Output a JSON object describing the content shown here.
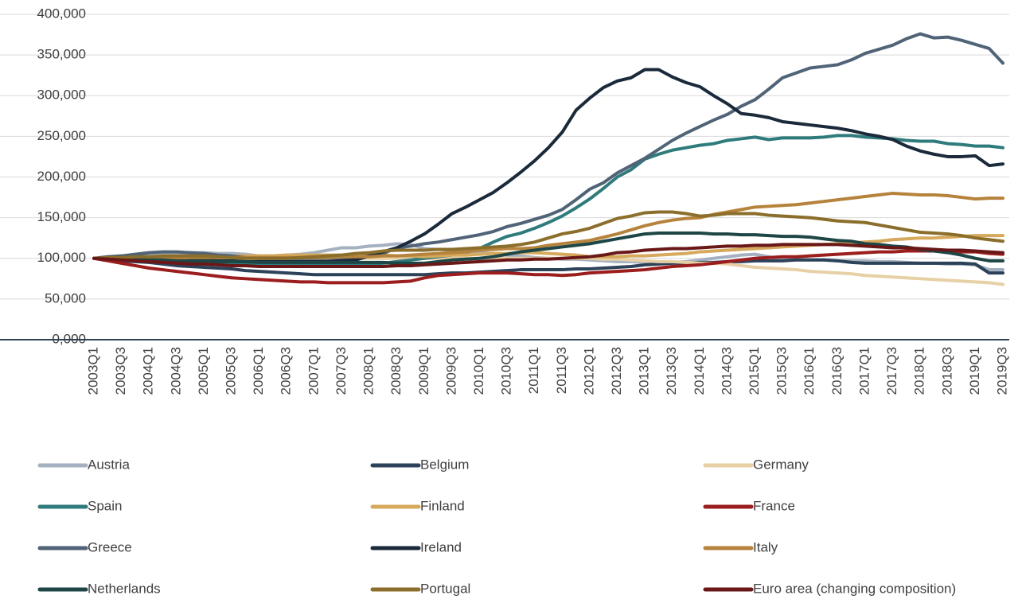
{
  "chart_data": {
    "type": "line",
    "categories": [
      "2003Q1",
      null,
      "2003Q3",
      null,
      "2004Q1",
      null,
      "2004Q3",
      null,
      "2005Q1",
      null,
      "2005Q3",
      null,
      "2006Q1",
      null,
      "2006Q3",
      null,
      "2007Q1",
      null,
      "2007Q3",
      null,
      "2008Q1",
      null,
      "2008Q3",
      null,
      "2009Q1",
      null,
      "2009Q3",
      null,
      "2010Q1",
      null,
      "2010Q3",
      null,
      "2011Q1",
      null,
      "2011Q3",
      null,
      "2012Q1",
      null,
      "2012Q3",
      null,
      "2013Q1",
      null,
      "2013Q3",
      null,
      "2014Q1",
      null,
      "2014Q3",
      null,
      "2015Q1",
      null,
      "2015Q3",
      null,
      "2016Q1",
      null,
      "2016Q3",
      null,
      "2017Q1",
      null,
      "2017Q3",
      null,
      "2018Q1",
      null,
      "2018Q3",
      null,
      "2019Q1",
      null,
      "2019Q3"
    ],
    "ylim": [
      0,
      400
    ],
    "yticks": [
      {
        "value": 0,
        "label": "0,000"
      },
      {
        "value": 50,
        "label": "50,000"
      },
      {
        "value": 100,
        "label": "100,000"
      },
      {
        "value": 150,
        "label": "150,000"
      },
      {
        "value": 200,
        "label": "200,000"
      },
      {
        "value": 250,
        "label": "250,000"
      },
      {
        "value": 300,
        "label": "300,000"
      },
      {
        "value": 350,
        "label": "350,000"
      },
      {
        "value": 400,
        "label": "400,000"
      }
    ],
    "grid": true,
    "legend": "bottom",
    "series": [
      {
        "name": "Austria",
        "color": "#a5b1c0",
        "values": [
          100,
          101,
          103,
          104,
          106,
          107,
          107,
          107,
          107,
          106,
          106,
          105,
          103,
          103,
          104,
          105,
          107,
          110,
          113,
          113,
          115,
          116,
          118,
          117,
          112,
          111,
          110,
          109,
          107,
          106,
          104,
          103,
          101,
          100,
          99,
          99,
          98,
          97,
          96,
          96,
          95,
          95,
          95,
          96,
          98,
          100,
          102,
          104,
          105,
          102,
          98,
          98,
          98,
          98,
          97,
          97,
          97,
          96,
          96,
          95,
          94,
          94,
          93,
          93,
          92,
          86,
          86
        ]
      },
      {
        "name": "Belgium",
        "color": "#2c4259",
        "values": [
          100,
          98,
          97,
          96,
          95,
          93,
          91,
          90,
          89,
          88,
          87,
          85,
          84,
          83,
          82,
          81,
          80,
          80,
          80,
          80,
          80,
          80,
          80,
          80,
          80,
          81,
          82,
          82,
          83,
          84,
          85,
          86,
          86,
          86,
          86,
          87,
          87,
          88,
          89,
          90,
          92,
          93,
          94,
          94,
          95,
          95,
          96,
          96,
          97,
          97,
          97,
          98,
          98,
          98,
          97,
          95,
          94,
          94,
          94,
          94,
          94,
          94,
          94,
          94,
          93,
          82,
          82
        ]
      },
      {
        "name": "Germany",
        "color": "#e8d0a6",
        "values": [
          100,
          100,
          100,
          100,
          100,
          100,
          100,
          100,
          100,
          100,
          100,
          100,
          100,
          100,
          100,
          100,
          100,
          100,
          100,
          100,
          100,
          100,
          100,
          100,
          100,
          100,
          100,
          100,
          100,
          100,
          100,
          100,
          100,
          100,
          100,
          100,
          100,
          99,
          99,
          98,
          97,
          96,
          96,
          95,
          94,
          94,
          93,
          91,
          89,
          88,
          87,
          86,
          84,
          83,
          82,
          81,
          79,
          78,
          77,
          76,
          75,
          74,
          73,
          72,
          71,
          70,
          68
        ]
      },
      {
        "name": "Spain",
        "color": "#2f7b7c",
        "values": [
          100,
          100,
          100,
          99,
          98,
          97,
          96,
          95,
          95,
          94,
          93,
          93,
          92,
          92,
          92,
          92,
          92,
          92,
          92,
          92,
          93,
          94,
          96,
          98,
          100,
          102,
          104,
          107,
          112,
          120,
          127,
          131,
          137,
          144,
          152,
          162,
          173,
          186,
          200,
          209,
          222,
          228,
          233,
          236,
          239,
          241,
          245,
          247,
          249,
          246,
          248,
          248,
          248,
          249,
          251,
          251,
          249,
          248,
          247,
          245,
          244,
          244,
          241,
          240,
          238,
          238,
          236
        ]
      },
      {
        "name": "Finland",
        "color": "#d6a95c",
        "values": [
          100,
          100,
          101,
          101,
          102,
          102,
          102,
          103,
          103,
          103,
          103,
          103,
          103,
          103,
          104,
          104,
          104,
          104,
          104,
          104,
          104,
          104,
          103,
          103,
          102,
          103,
          104,
          104,
          105,
          106,
          106,
          107,
          107,
          106,
          105,
          104,
          102,
          102,
          102,
          103,
          103,
          104,
          105,
          106,
          108,
          109,
          110,
          111,
          112,
          113,
          114,
          115,
          116,
          117,
          118,
          119,
          120,
          121,
          123,
          124,
          125,
          125,
          126,
          127,
          128,
          128,
          128
        ]
      },
      {
        "name": "France",
        "color": "#9b1d1d",
        "values": [
          100,
          97,
          94,
          91,
          88,
          86,
          84,
          82,
          80,
          78,
          76,
          75,
          74,
          73,
          72,
          71,
          71,
          70,
          70,
          70,
          70,
          70,
          71,
          72,
          76,
          79,
          80,
          81,
          82,
          82,
          82,
          81,
          80,
          80,
          79,
          80,
          82,
          83,
          84,
          85,
          86,
          88,
          90,
          91,
          92,
          94,
          96,
          98,
          100,
          101,
          102,
          102,
          103,
          104,
          105,
          106,
          107,
          108,
          108,
          109,
          109,
          109,
          108,
          108,
          108,
          106,
          105
        ]
      },
      {
        "name": "Greece",
        "color": "#506377",
        "values": [
          100,
          102,
          103,
          105,
          107,
          108,
          108,
          107,
          106,
          104,
          103,
          101,
          100,
          100,
          100,
          100,
          100,
          100,
          100,
          101,
          103,
          106,
          113,
          115,
          118,
          120,
          123,
          126,
          129,
          133,
          139,
          143,
          148,
          153,
          160,
          172,
          185,
          193,
          205,
          214,
          223,
          234,
          245,
          254,
          262,
          270,
          277,
          287,
          295,
          308,
          322,
          328,
          334,
          336,
          338,
          344,
          352,
          357,
          362,
          370,
          376,
          371,
          372,
          368,
          363,
          358,
          340
        ]
      },
      {
        "name": "Ireland",
        "color": "#1b2a3b",
        "values": [
          100,
          101,
          101,
          102,
          102,
          101,
          100,
          99,
          98,
          97,
          97,
          96,
          96,
          96,
          96,
          96,
          96,
          96,
          97,
          98,
          103,
          108,
          113,
          121,
          130,
          142,
          155,
          163,
          172,
          181,
          193,
          206,
          220,
          236,
          255,
          282,
          297,
          310,
          318,
          322,
          332,
          332,
          323,
          316,
          311,
          300,
          290,
          278,
          276,
          273,
          268,
          266,
          264,
          262,
          260,
          257,
          253,
          250,
          246,
          238,
          232,
          228,
          225,
          225,
          226,
          214,
          216
        ]
      },
      {
        "name": "Italy",
        "color": "#b6833c",
        "values": [
          100,
          100,
          100,
          100,
          100,
          100,
          100,
          101,
          101,
          101,
          101,
          101,
          101,
          101,
          101,
          101,
          101,
          101,
          102,
          102,
          102,
          103,
          103,
          104,
          105,
          106,
          107,
          108,
          110,
          111,
          112,
          112,
          113,
          116,
          118,
          120,
          122,
          126,
          130,
          135,
          140,
          144,
          147,
          149,
          150,
          154,
          157,
          160,
          163,
          164,
          165,
          166,
          168,
          170,
          172,
          174,
          176,
          178,
          180,
          179,
          178,
          178,
          177,
          175,
          173,
          174,
          174
        ]
      },
      {
        "name": "Netherlands",
        "color": "#1e4646",
        "values": [
          100,
          100,
          99,
          99,
          98,
          98,
          97,
          97,
          97,
          96,
          96,
          96,
          95,
          95,
          95,
          95,
          95,
          95,
          95,
          95,
          95,
          95,
          94,
          94,
          94,
          96,
          98,
          99,
          100,
          102,
          105,
          108,
          110,
          112,
          114,
          116,
          118,
          121,
          124,
          127,
          130,
          131,
          131,
          131,
          131,
          130,
          130,
          129,
          129,
          128,
          127,
          127,
          126,
          124,
          122,
          121,
          118,
          117,
          115,
          114,
          111,
          109,
          107,
          104,
          100,
          97,
          97
        ]
      },
      {
        "name": "Portugal",
        "color": "#8b6e2b",
        "values": [
          100,
          101,
          101,
          102,
          102,
          103,
          103,
          103,
          103,
          102,
          101,
          100,
          100,
          100,
          100,
          101,
          102,
          103,
          104,
          106,
          107,
          109,
          110,
          110,
          110,
          111,
          111,
          112,
          113,
          114,
          115,
          117,
          120,
          125,
          130,
          133,
          137,
          143,
          149,
          152,
          156,
          157,
          157,
          155,
          152,
          153,
          155,
          155,
          155,
          153,
          152,
          151,
          150,
          148,
          146,
          145,
          144,
          141,
          138,
          135,
          132,
          131,
          130,
          128,
          125,
          123,
          121
        ]
      },
      {
        "name": "Euro area (changing composition)",
        "color": "#6a1717",
        "values": [
          100,
          99,
          98,
          97,
          96,
          95,
          94,
          93,
          93,
          92,
          91,
          91,
          90,
          90,
          90,
          90,
          90,
          90,
          90,
          90,
          90,
          90,
          91,
          91,
          92,
          93,
          94,
          95,
          96,
          97,
          98,
          98,
          99,
          99,
          100,
          101,
          102,
          104,
          107,
          108,
          110,
          111,
          112,
          112,
          113,
          114,
          115,
          115,
          116,
          116,
          117,
          117,
          117,
          117,
          117,
          116,
          115,
          114,
          113,
          113,
          112,
          111,
          110,
          110,
          109,
          108,
          107
        ]
      }
    ]
  }
}
